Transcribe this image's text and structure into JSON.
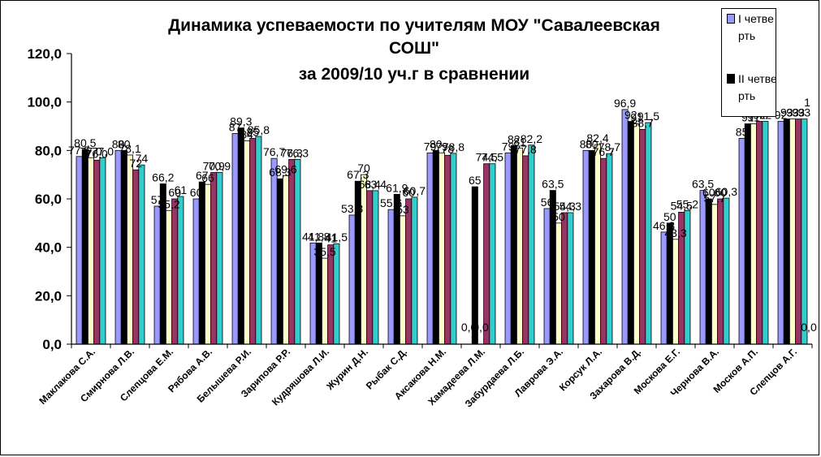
{
  "chart_data": {
    "type": "bar",
    "title_lines": [
      "Динамика успеваемости по учителям МОУ \"Савалеевская",
      "СОШ\"",
      "за 2009/10 уч.г в сравнении"
    ],
    "ylim": [
      0,
      120
    ],
    "yticks": [
      "0,0",
      "20,0",
      "40,0",
      "60,0",
      "80,0",
      "100,0",
      "120,0"
    ],
    "grid": false,
    "legend_position": "top-right",
    "categories": [
      "Маклакова С.А.",
      "Смирнова Л.В.",
      "Слепцова Е.М.",
      "Рябова А.В.",
      "Белышева Р.И.",
      "Зарипова Р.Р.",
      "Кудряшова Л.И.",
      "Журин Д.Н.",
      "Рыбак С.Д.",
      "Аксакова Н.М.",
      "Хамадеева Л.М.",
      "Забурдаева Л.Б.",
      "Лаврова Э.А.",
      "Корсук Л.А.",
      "Захарова В.Д.",
      "Москова Е.Г.",
      "Чернова В.А.",
      "Москов А.П.",
      "Слепцов А.Г."
    ],
    "series": [
      {
        "name": "I четверть",
        "color": "#9999ff",
        "values": [
          77.5,
          80.0,
          57.0,
          60.0,
          87.0,
          76.7,
          41.8,
          53.3,
          55.6,
          79.0,
          0.0,
          79.0,
          56.0,
          80.0,
          96.9,
          46.3,
          63.5,
          85.0,
          92.0
        ]
      },
      {
        "name": "II четверть",
        "color": "#000000",
        "values": [
          80.5,
          80.0,
          66.2,
          67.0,
          89.3,
          68.3,
          41.8,
          67.3,
          61.9,
          80.0,
          65.0,
          82.0,
          63.5,
          80.0,
          92.0,
          50.0,
          60.0,
          91.0,
          93.0
        ]
      },
      {
        "name": "",
        "color": "#ffffcc",
        "values": [
          77.0,
          78.1,
          55.2,
          66.0,
          84.0,
          69.6,
          35.5,
          70.0,
          53.0,
          79.0,
          0.0,
          81.0,
          50.0,
          82.4,
          91.0,
          43.3,
          57.7,
          91.0,
          93.0
        ]
      },
      {
        "name": "",
        "color": "#993366",
        "values": [
          76.0,
          72.0,
          60.0,
          70.9,
          85.0,
          76.3,
          41.0,
          63.4,
          60.0,
          78.0,
          74.5,
          77.8,
          54.3,
          76.7,
          88.7,
          54.5,
          60.0,
          92.0,
          93.0
        ]
      },
      {
        "name": "",
        "color": "#33cccc",
        "values": [
          77.0,
          74.0,
          61.0,
          70.9,
          85.8,
          76.3,
          41.5,
          63.4,
          60.7,
          78.8,
          74.5,
          82.2,
          54.3,
          78.7,
          91.5,
          55.2,
          60.3,
          92.0,
          93.0
        ]
      }
    ],
    "data_labels": [
      [
        "77,5",
        "80,5",
        "77,0",
        "76,0",
        "77,0"
      ],
      [
        "80",
        "80",
        "78,1",
        "72",
        "74"
      ],
      [
        "57",
        "66,2",
        "55,2",
        "60",
        "61"
      ],
      [
        "60",
        "67",
        "66",
        "70,9",
        "70,9"
      ],
      [
        "87",
        "89,3",
        "84",
        "85",
        "85,8"
      ],
      [
        "76,7",
        "68,3",
        "69,6",
        "76,3",
        "76,3"
      ],
      [
        "41,8",
        "41,8",
        "35,5",
        "41",
        "41,5"
      ],
      [
        "53,3",
        "67,3",
        "70",
        "63,4",
        "63,4"
      ],
      [
        "55,6",
        "61,9",
        "53",
        "60",
        "60,7"
      ],
      [
        "79",
        "80",
        "79",
        "78",
        "78,8"
      ],
      [
        "0,0",
        "65",
        "0,0",
        "74,5",
        "74,5"
      ],
      [
        "79",
        "82",
        "81",
        "77,8",
        "82,2"
      ],
      [
        "56",
        "63,5",
        "50",
        "54,3",
        "54,3"
      ],
      [
        "80",
        "80",
        "82,4",
        "76,7",
        "78,7"
      ],
      [
        "96,9",
        "92",
        "91",
        "88,7",
        "91,5"
      ],
      [
        "46,3",
        "50",
        "43,3",
        "54,5",
        "55,2"
      ],
      [
        "63,5",
        "60",
        "57,7",
        "60",
        "60,3"
      ],
      [
        "85",
        "91",
        "91",
        "92",
        "92"
      ],
      [
        "92",
        "93",
        "93",
        "93",
        "93"
      ]
    ],
    "extra_labels": [
      "1",
      "0,0"
    ]
  }
}
